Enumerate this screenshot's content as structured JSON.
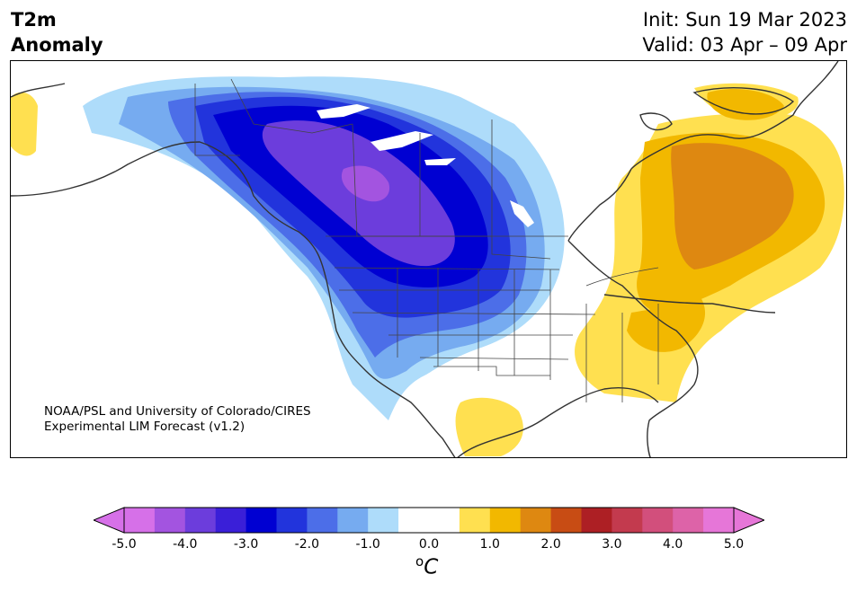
{
  "header": {
    "variable_line1": "T2m",
    "variable_line2": "Anomaly",
    "init": "Init: Sun 19 Mar 2023",
    "valid": "Valid: 03 Apr – 09 Apr"
  },
  "map": {
    "region": "North America",
    "projection": "lambert-conic",
    "features": {
      "cold_anomaly_center": "western Canada / northern Great Plains",
      "warm_anomaly_center": "Quebec / eastern Canada and eastern United States"
    },
    "credit_line1": "NOAA/PSL and University of Colorado/CIRES",
    "credit_line2": "Experimental LIM Forecast (v1.2)"
  },
  "colorbar": {
    "tick_labels": [
      "-5.0",
      "-4.0",
      "-3.0",
      "-2.0",
      "-1.0",
      "0.0",
      "1.0",
      "2.0",
      "3.0",
      "4.0",
      "5.0"
    ],
    "unit_base": "C",
    "unit_prefix": "o",
    "extend": "both",
    "colors": [
      "#d670e8",
      "#a354e0",
      "#6c3ddc",
      "#3a1fd8",
      "#0000d2",
      "#2234dc",
      "#4c6ee8",
      "#76abf0",
      "#aedcfa",
      "#ffffff",
      "#ffffff",
      "#ffe050",
      "#f2b800",
      "#de8811",
      "#c84c14",
      "#ad1f24",
      "#c33a4e",
      "#d24f7c",
      "#dd63a8",
      "#e676d8"
    ]
  }
}
